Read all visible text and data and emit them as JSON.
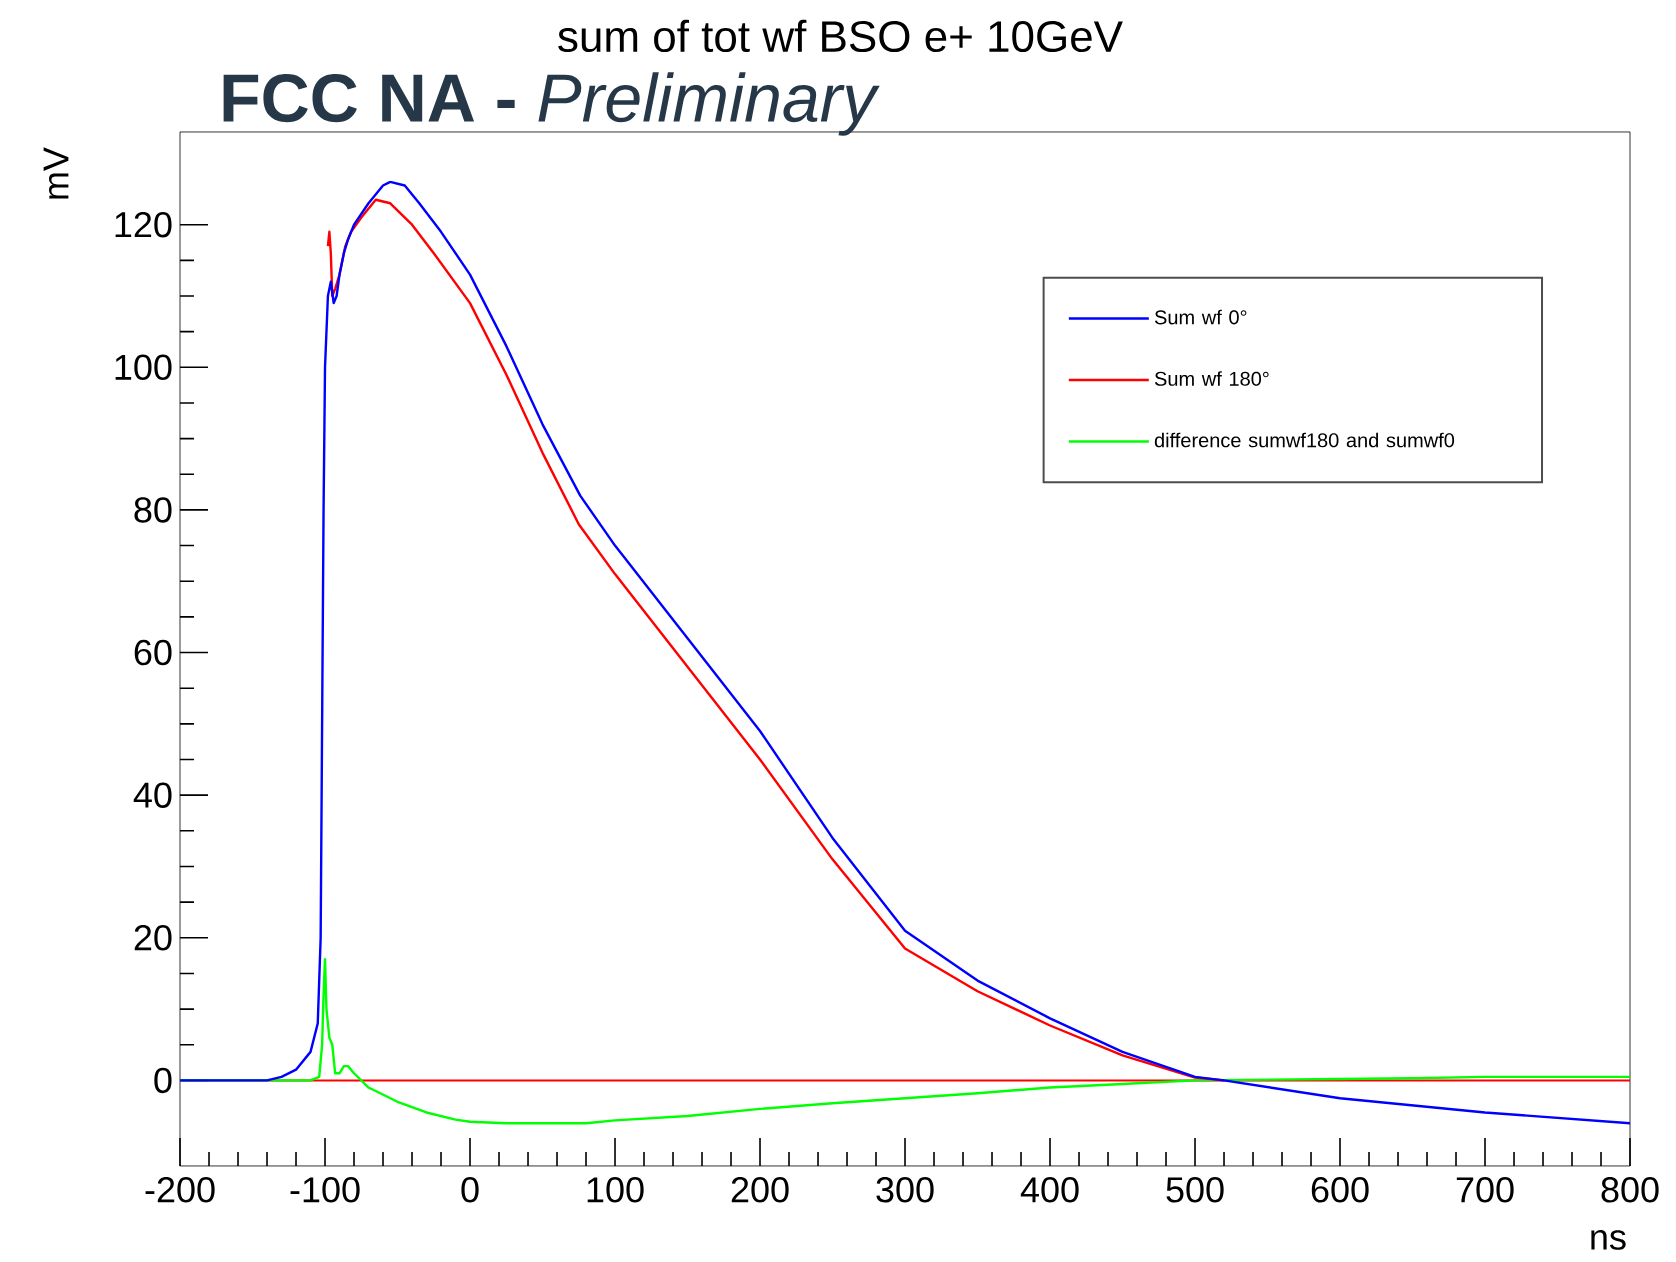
{
  "chart_data": {
    "type": "line",
    "title": "sum of tot wf BSO e+ 10GeV",
    "annotations": [
      "**FCC NA -** *Preliminary*"
    ],
    "xlabel": "ns",
    "ylabel": "mV",
    "xlim": [
      -200,
      800
    ],
    "ylim": [
      -12,
      133
    ],
    "xticks": [
      -200,
      -100,
      0,
      100,
      200,
      300,
      400,
      500,
      600,
      700,
      800
    ],
    "yticks": [
      0,
      20,
      40,
      60,
      80,
      100,
      120
    ],
    "grid": false,
    "legend": "top right",
    "ref_lines": [
      {
        "axis": "y",
        "value": 0,
        "color": "#ff0000"
      }
    ],
    "series": [
      {
        "name": "Sum wf 0°",
        "color": "#0000ff",
        "x": [
          -200,
          -140,
          -130,
          -120,
          -110,
          -105,
          -103,
          -102,
          -101,
          -100,
          -98,
          -96,
          -94,
          -92,
          -90,
          -87,
          -84,
          -80,
          -70,
          -60,
          -55,
          -45,
          -35,
          -20,
          0,
          25,
          50,
          76,
          100,
          150,
          200,
          250,
          300,
          350,
          400,
          450,
          500,
          520,
          600,
          700,
          800
        ],
        "values": [
          0,
          0,
          0.5,
          1.5,
          4,
          8,
          20,
          50,
          80,
          100,
          110,
          112,
          109,
          110,
          113,
          116,
          118,
          120,
          123,
          125.5,
          126,
          125.5,
          123,
          119,
          113,
          103,
          92,
          82,
          75,
          62,
          49,
          34,
          21,
          14,
          8.7,
          4,
          0.5,
          0,
          -2.5,
          -4.5,
          -6
        ]
      },
      {
        "name": "Sum wf 180°",
        "color": "#ff0000",
        "x": [
          -98,
          -97,
          -96,
          -95,
          -93,
          -90,
          -86,
          -82,
          -75,
          -65,
          -55,
          -40,
          -25,
          0,
          25,
          50,
          75,
          100,
          150,
          200,
          250,
          300,
          350,
          400,
          450,
          500,
          520
        ],
        "values": [
          117,
          119,
          116,
          110,
          111,
          113,
          117,
          119,
          121,
          123.5,
          123,
          120,
          116,
          109,
          99,
          88,
          78,
          71,
          58,
          45,
          31,
          18.5,
          12.5,
          7.7,
          3.5,
          0.4,
          0
        ]
      },
      {
        "name": "difference sumwf180 and sumwf0",
        "color": "#00ff00",
        "x": [
          -200,
          -110,
          -104,
          -102,
          -101,
          -100,
          -99,
          -97,
          -95,
          -93,
          -90,
          -87,
          -84,
          -80,
          -70,
          -50,
          -30,
          -10,
          0,
          25,
          50,
          80,
          100,
          150,
          200,
          250,
          300,
          350,
          400,
          450,
          500,
          600,
          650,
          700,
          800
        ],
        "values": [
          0,
          0,
          0.5,
          5,
          12,
          17,
          10,
          6,
          5,
          1,
          1,
          2,
          2,
          1,
          -1,
          -3,
          -4.5,
          -5.5,
          -5.8,
          -6,
          -6,
          -6,
          -5.6,
          -5,
          -4,
          -3.2,
          -2.5,
          -1.8,
          -1,
          -0.5,
          0,
          0.2,
          0.3,
          0.5,
          0.5
        ]
      }
    ]
  }
}
